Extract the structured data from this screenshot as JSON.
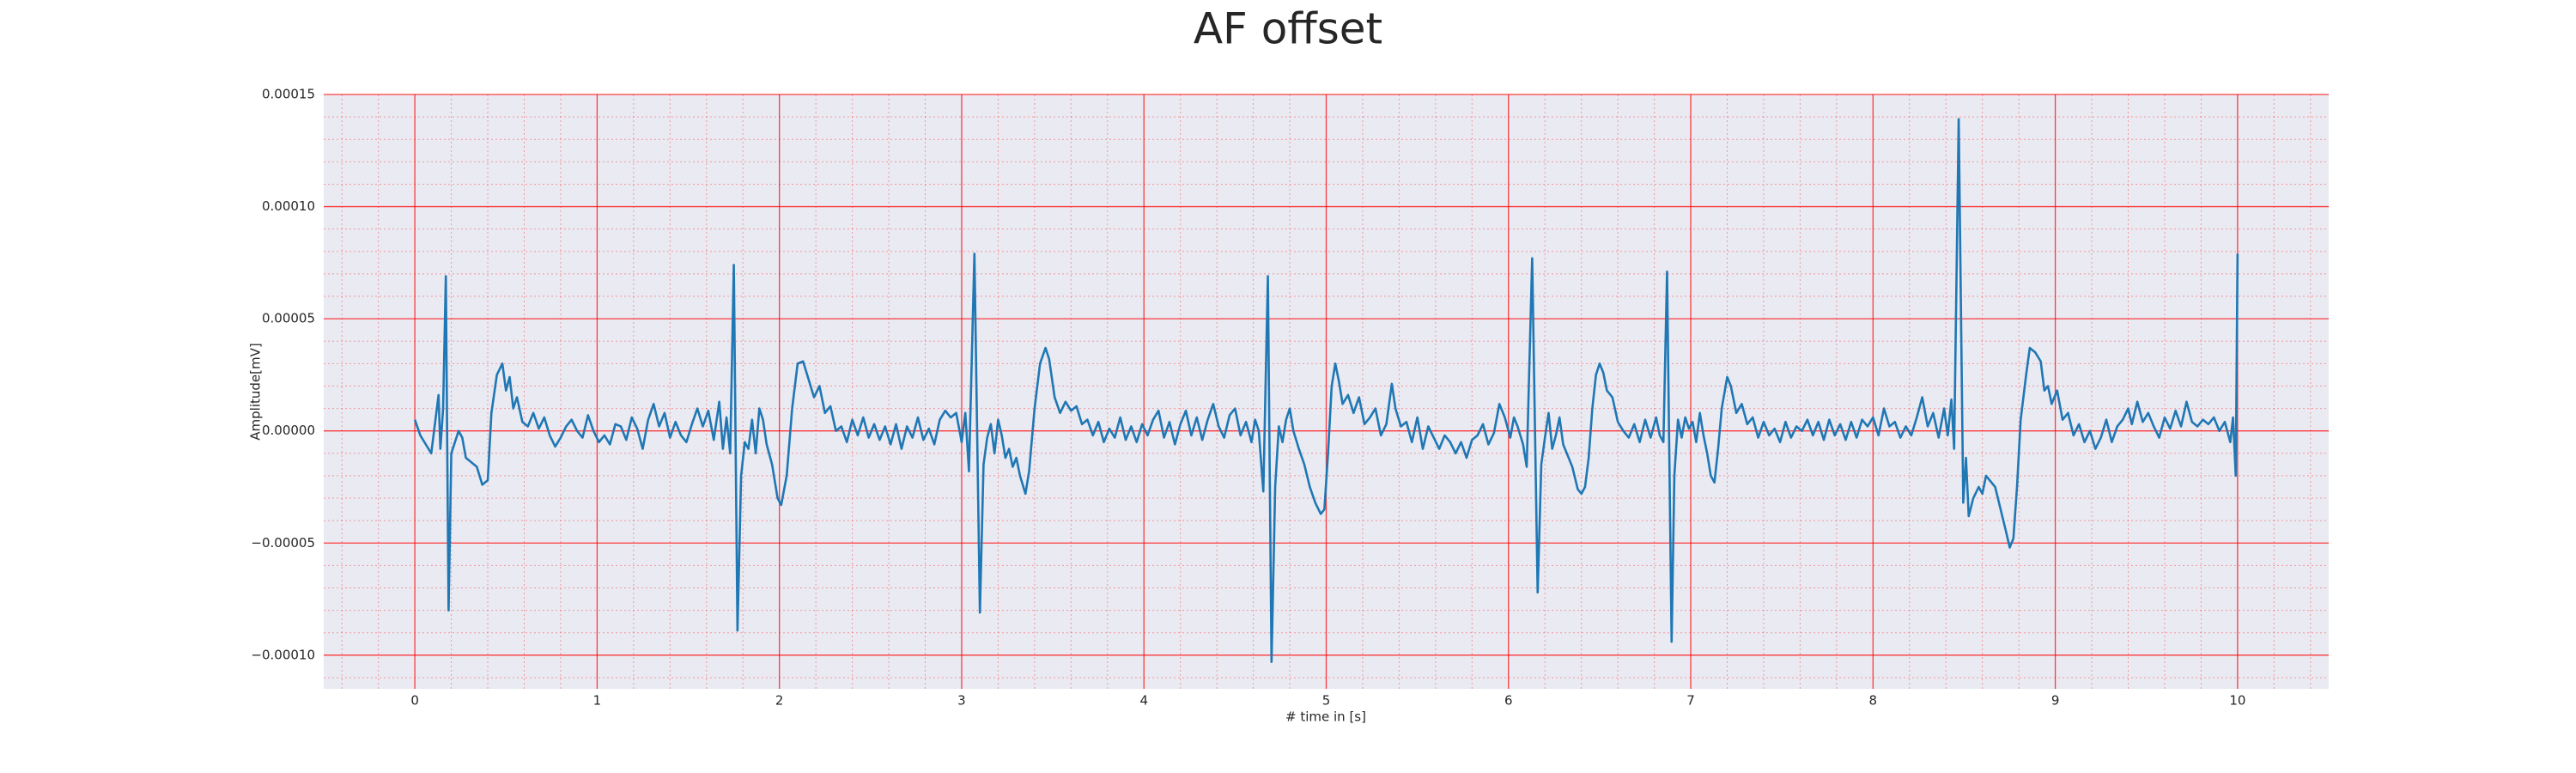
{
  "chart_data": {
    "type": "line",
    "title": "AF offset",
    "x_label": "# time in [s]",
    "y_label": "Amplitude[mV]",
    "xlim": [
      -0.5,
      10.5
    ],
    "ylim": [
      -0.000115,
      0.00015
    ],
    "xticks": [
      0,
      1,
      2,
      3,
      4,
      5,
      6,
      7,
      8,
      9,
      10
    ],
    "yticks": [
      {
        "value": -0.0001,
        "label": "−0.00010"
      },
      {
        "value": -5e-05,
        "label": "−0.00005"
      },
      {
        "value": 0,
        "label": "0.00000"
      },
      {
        "value": 5e-05,
        "label": "0.00005"
      },
      {
        "value": 0.0001,
        "label": "0.00010"
      },
      {
        "value": 0.00015,
        "label": "0.00015"
      }
    ],
    "grid": true,
    "minor_grid": true,
    "grid_color": "#ff0000",
    "background": "#eaeaf2",
    "x": [
      0,
      0.03,
      0.06,
      0.09,
      0.11,
      0.13,
      0.14,
      0.155,
      0.17,
      0.185,
      0.2,
      0.22,
      0.24,
      0.26,
      0.28,
      0.31,
      0.34,
      0.37,
      0.4,
      0.42,
      0.45,
      0.48,
      0.5,
      0.52,
      0.54,
      0.56,
      0.59,
      0.62,
      0.65,
      0.68,
      0.71,
      0.74,
      0.77,
      0.8,
      0.83,
      0.86,
      0.89,
      0.92,
      0.95,
      0.98,
      1.01,
      1.04,
      1.07,
      1.1,
      1.13,
      1.16,
      1.19,
      1.22,
      1.25,
      1.28,
      1.31,
      1.34,
      1.37,
      1.4,
      1.43,
      1.46,
      1.49,
      1.52,
      1.55,
      1.58,
      1.61,
      1.64,
      1.67,
      1.69,
      1.71,
      1.73,
      1.75,
      1.77,
      1.79,
      1.81,
      1.83,
      1.85,
      1.87,
      1.89,
      1.91,
      1.93,
      1.96,
      1.99,
      2.01,
      2.04,
      2.07,
      2.1,
      2.13,
      2.16,
      2.19,
      2.22,
      2.25,
      2.28,
      2.31,
      2.34,
      2.37,
      2.4,
      2.43,
      2.46,
      2.49,
      2.52,
      2.55,
      2.58,
      2.61,
      2.64,
      2.67,
      2.7,
      2.73,
      2.76,
      2.79,
      2.82,
      2.85,
      2.88,
      2.91,
      2.94,
      2.97,
      3,
      3.02,
      3.04,
      3.07,
      3.1,
      3.12,
      3.14,
      3.16,
      3.18,
      3.2,
      3.22,
      3.24,
      3.26,
      3.28,
      3.3,
      3.32,
      3.35,
      3.37,
      3.4,
      3.43,
      3.46,
      3.48,
      3.51,
      3.54,
      3.57,
      3.6,
      3.63,
      3.66,
      3.69,
      3.72,
      3.75,
      3.78,
      3.81,
      3.84,
      3.87,
      3.9,
      3.93,
      3.96,
      3.99,
      4.02,
      4.05,
      4.08,
      4.11,
      4.14,
      4.17,
      4.2,
      4.23,
      4.26,
      4.29,
      4.32,
      4.35,
      4.38,
      4.41,
      4.44,
      4.47,
      4.5,
      4.53,
      4.56,
      4.59,
      4.61,
      4.63,
      4.655,
      4.68,
      4.7,
      4.72,
      4.74,
      4.76,
      4.78,
      4.8,
      4.82,
      4.85,
      4.88,
      4.91,
      4.94,
      4.97,
      4.99,
      5.01,
      5.03,
      5.05,
      5.07,
      5.09,
      5.12,
      5.15,
      5.18,
      5.21,
      5.24,
      5.27,
      5.3,
      5.33,
      5.36,
      5.38,
      5.41,
      5.44,
      5.47,
      5.5,
      5.53,
      5.56,
      5.59,
      5.62,
      5.65,
      5.68,
      5.71,
      5.74,
      5.77,
      5.8,
      5.83,
      5.86,
      5.89,
      5.92,
      5.95,
      5.98,
      6.01,
      6.03,
      6.05,
      6.08,
      6.1,
      6.13,
      6.16,
      6.18,
      6.2,
      6.22,
      6.24,
      6.26,
      6.28,
      6.3,
      6.32,
      6.35,
      6.38,
      6.4,
      6.42,
      6.44,
      6.46,
      6.48,
      6.5,
      6.52,
      6.54,
      6.57,
      6.6,
      6.63,
      6.66,
      6.69,
      6.72,
      6.75,
      6.78,
      6.81,
      6.83,
      6.85,
      6.87,
      6.895,
      6.91,
      6.93,
      6.95,
      6.97,
      6.99,
      7.01,
      7.03,
      7.05,
      7.07,
      7.09,
      7.11,
      7.13,
      7.15,
      7.17,
      7.2,
      7.22,
      7.25,
      7.28,
      7.31,
      7.34,
      7.37,
      7.4,
      7.43,
      7.46,
      7.49,
      7.52,
      7.55,
      7.58,
      7.61,
      7.64,
      7.67,
      7.7,
      7.73,
      7.76,
      7.79,
      7.82,
      7.85,
      7.88,
      7.91,
      7.94,
      7.97,
      8,
      8.03,
      8.06,
      8.09,
      8.12,
      8.15,
      8.18,
      8.21,
      8.24,
      8.27,
      8.3,
      8.33,
      8.36,
      8.39,
      8.41,
      8.43,
      8.445,
      8.47,
      8.495,
      8.51,
      8.525,
      8.55,
      8.58,
      8.6,
      8.62,
      8.64,
      8.67,
      8.7,
      8.73,
      8.75,
      8.77,
      8.79,
      8.81,
      8.84,
      8.86,
      8.89,
      8.92,
      8.94,
      8.96,
      8.98,
      9.01,
      9.04,
      9.07,
      9.1,
      9.13,
      9.16,
      9.19,
      9.22,
      9.25,
      9.28,
      9.31,
      9.34,
      9.37,
      9.4,
      9.42,
      9.45,
      9.48,
      9.51,
      9.54,
      9.57,
      9.6,
      9.63,
      9.66,
      9.69,
      9.72,
      9.75,
      9.78,
      9.81,
      9.84,
      9.87,
      9.9,
      9.93,
      9.96,
      9.975,
      9.99,
      10
    ],
    "series": [
      {
        "color": "#1f77b4",
        "values": [
          5e-06,
          -2e-06,
          -6e-06,
          -1e-05,
          3e-06,
          1.6e-05,
          -8e-06,
          1e-05,
          6.9e-05,
          -8e-05,
          -1e-05,
          -5e-06,
          0,
          -3e-06,
          -1.2e-05,
          -1.4e-05,
          -1.6e-05,
          -2.4e-05,
          -2.2e-05,
          8e-06,
          2.5e-05,
          3e-05,
          1.8e-05,
          2.4e-05,
          1e-05,
          1.5e-05,
          4e-06,
          2e-06,
          8e-06,
          1e-06,
          6e-06,
          -2e-06,
          -7e-06,
          -3e-06,
          2e-06,
          5e-06,
          0,
          -3e-06,
          7e-06,
          0,
          -5e-06,
          -2e-06,
          -6e-06,
          3e-06,
          2e-06,
          -4e-06,
          6e-06,
          1e-06,
          -8e-06,
          5e-06,
          1.2e-05,
          2e-06,
          8e-06,
          -3e-06,
          4e-06,
          -2e-06,
          -5e-06,
          3e-06,
          1e-05,
          2e-06,
          9e-06,
          -4e-06,
          1.3e-05,
          -8e-06,
          6e-06,
          -1e-05,
          7.4e-05,
          -8.9e-05,
          -2e-05,
          -5e-06,
          -8e-06,
          5e-06,
          -1e-05,
          1e-05,
          5e-06,
          -6e-06,
          -1.5e-05,
          -3e-05,
          -3.3e-05,
          -2e-05,
          1e-05,
          3e-05,
          3.1e-05,
          2.3e-05,
          1.5e-05,
          2e-05,
          8e-06,
          1.1e-05,
          0,
          2e-06,
          -5e-06,
          5e-06,
          -2e-06,
          6e-06,
          -3e-06,
          3e-06,
          -4e-06,
          2e-06,
          -6e-06,
          3e-06,
          -8e-06,
          2e-06,
          -3e-06,
          6e-06,
          -4e-06,
          1e-06,
          -6e-06,
          5e-06,
          9e-06,
          6e-06,
          8e-06,
          -5e-06,
          8e-06,
          -1.8e-05,
          7.9e-05,
          -8.1e-05,
          -1.5e-05,
          -3e-06,
          3e-06,
          -1e-05,
          5e-06,
          -2e-06,
          -1.2e-05,
          -8e-06,
          -1.6e-05,
          -1.2e-05,
          -2e-05,
          -2.8e-05,
          -1.8e-05,
          1e-05,
          3e-05,
          3.7e-05,
          3.2e-05,
          1.5e-05,
          8e-06,
          1.3e-05,
          9e-06,
          1.1e-05,
          3e-06,
          5e-06,
          -2e-06,
          4e-06,
          -5e-06,
          1e-06,
          -3e-06,
          6e-06,
          -4e-06,
          2e-06,
          -5e-06,
          3e-06,
          -2e-06,
          5e-06,
          9e-06,
          -3e-06,
          4e-06,
          -6e-06,
          3e-06,
          9e-06,
          -2e-06,
          6e-06,
          -4e-06,
          5e-06,
          1.2e-05,
          2e-06,
          -3e-06,
          7e-06,
          1e-05,
          -2e-06,
          4e-06,
          -5e-06,
          5e-06,
          0,
          -2.7e-05,
          6.9e-05,
          -0.000103,
          -2.5e-05,
          2e-06,
          -5e-06,
          5e-06,
          1e-05,
          0,
          -8e-06,
          -1.5e-05,
          -2.5e-05,
          -3.2e-05,
          -3.7e-05,
          -3.5e-05,
          -1e-05,
          2e-05,
          3e-05,
          2.2e-05,
          1.2e-05,
          1.6e-05,
          8e-06,
          1.5e-05,
          3e-06,
          6e-06,
          1e-05,
          -2e-06,
          3e-06,
          2.1e-05,
          1e-05,
          2e-06,
          4e-06,
          -5e-06,
          6e-06,
          -8e-06,
          2e-06,
          -3e-06,
          -8e-06,
          -2e-06,
          -5e-06,
          -1e-05,
          -5e-06,
          -1.2e-05,
          -4e-06,
          -2e-06,
          3e-06,
          -6e-06,
          -1e-06,
          1.2e-05,
          6e-06,
          -3e-06,
          6e-06,
          2e-06,
          -6e-06,
          -1.6e-05,
          7.7e-05,
          -7.2e-05,
          -1.5e-05,
          -3e-06,
          8e-06,
          -8e-06,
          -2e-06,
          6e-06,
          -6e-06,
          -1e-05,
          -1.6e-05,
          -2.6e-05,
          -2.8e-05,
          -2.5e-05,
          -1.2e-05,
          1e-05,
          2.5e-05,
          3e-05,
          2.6e-05,
          1.8e-05,
          1.5e-05,
          4e-06,
          0,
          -3e-06,
          3e-06,
          -5e-06,
          5e-06,
          -3e-06,
          6e-06,
          -2e-06,
          -5e-06,
          7.1e-05,
          -9.4e-05,
          -2e-05,
          5e-06,
          -3e-06,
          6e-06,
          1e-06,
          4e-06,
          -5e-06,
          8e-06,
          -2e-06,
          -1e-05,
          -2e-05,
          -2.3e-05,
          -8e-06,
          1e-05,
          2.4e-05,
          2e-05,
          8e-06,
          1.2e-05,
          3e-06,
          6e-06,
          -3e-06,
          4e-06,
          -2e-06,
          1e-06,
          -5e-06,
          4e-06,
          -3e-06,
          2e-06,
          0,
          5e-06,
          -2e-06,
          4e-06,
          -4e-06,
          5e-06,
          -2e-06,
          3e-06,
          -4e-06,
          4e-06,
          -3e-06,
          5e-06,
          2e-06,
          6e-06,
          -2e-06,
          1e-05,
          2e-06,
          4e-06,
          -3e-06,
          2e-06,
          -2e-06,
          6e-06,
          1.5e-05,
          2e-06,
          8e-06,
          -3e-06,
          1e-05,
          -2e-06,
          1.4e-05,
          -8e-06,
          0.000139,
          -3.2e-05,
          -1.2e-05,
          -3.8e-05,
          -3e-05,
          -2.5e-05,
          -2.8e-05,
          -2e-05,
          -2.2e-05,
          -2.5e-05,
          -3.5e-05,
          -4.5e-05,
          -5.2e-05,
          -4.8e-05,
          -2.5e-05,
          5e-06,
          2.5e-05,
          3.7e-05,
          3.5e-05,
          3.1e-05,
          1.8e-05,
          2e-05,
          1.2e-05,
          1.8e-05,
          5e-06,
          8e-06,
          -2e-06,
          3e-06,
          -5e-06,
          0,
          -8e-06,
          -3e-06,
          5e-06,
          -5e-06,
          2e-06,
          5e-06,
          1e-05,
          3e-06,
          1.3e-05,
          4e-06,
          8e-06,
          2e-06,
          -3e-06,
          6e-06,
          1e-06,
          9e-06,
          2e-06,
          1.3e-05,
          4e-06,
          2e-06,
          5e-06,
          3e-06,
          6e-06,
          0,
          4e-06,
          -5e-06,
          6e-06,
          -2e-05,
          7.9e-05
        ]
      }
    ]
  }
}
